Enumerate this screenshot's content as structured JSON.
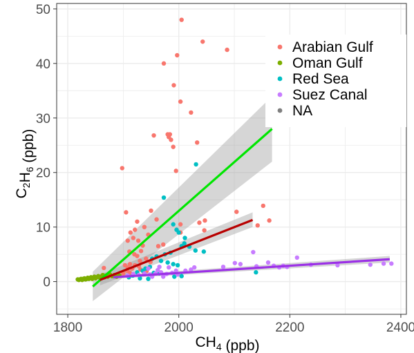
{
  "chart_data": {
    "type": "scatter",
    "xlabel": "CH4 (ppb)",
    "ylabel": "C2H6 (ppb)",
    "xlim": [
      1780,
      2410
    ],
    "ylim": [
      -6,
      51
    ],
    "x_ticks": [
      1800,
      2000,
      2200,
      2400
    ],
    "y_ticks": [
      0,
      10,
      20,
      30,
      40,
      50
    ],
    "grid": true,
    "legend_position": "top-right",
    "background": "#ffffff",
    "grid_color": "#ebebeb",
    "series": [
      {
        "name": "Arabian Gulf",
        "color": "#F8766D",
        "points": [
          [
            2005,
            48
          ],
          [
            2043,
            44
          ],
          [
            2087,
            42.5
          ],
          [
            1997,
            41.5
          ],
          [
            1973,
            40
          ],
          [
            1991,
            36
          ],
          [
            2003,
            33
          ],
          [
            2022,
            31
          ],
          [
            1980,
            27
          ],
          [
            1984,
            27
          ],
          [
            1982,
            26.5
          ],
          [
            1986,
            26
          ],
          [
            1955,
            26.8
          ],
          [
            2033,
            25.5
          ],
          [
            1990,
            24.7
          ],
          [
            1898,
            20.8
          ],
          [
            1995,
            20.3
          ],
          [
            1905,
            12.7
          ],
          [
            1950,
            13
          ],
          [
            1960,
            11.4
          ],
          [
            2104,
            12.8
          ],
          [
            2152,
            13.9
          ],
          [
            2163,
            11.2
          ],
          [
            2142,
            10.3
          ],
          [
            2047,
            11.2
          ],
          [
            2037,
            10.8
          ],
          [
            2003,
            10.5
          ],
          [
            1925,
            11
          ],
          [
            1938,
            10
          ],
          [
            1921,
            9.5
          ],
          [
            1913,
            9
          ],
          [
            1918,
            8
          ],
          [
            1927,
            7.5
          ],
          [
            1908,
            7.5
          ],
          [
            1945,
            8.6
          ],
          [
            1935,
            6.6
          ],
          [
            1963,
            6.5
          ],
          [
            1972,
            6.8
          ],
          [
            1932,
            5.6
          ],
          [
            1911,
            5.5
          ],
          [
            1920,
            5
          ],
          [
            1925,
            4.7
          ],
          [
            1941,
            4.2
          ],
          [
            1930,
            3.8
          ],
          [
            1949,
            3.6
          ],
          [
            1912,
            3.2
          ],
          [
            1921,
            3
          ],
          [
            1903,
            3
          ],
          [
            1908,
            2.6
          ],
          [
            1916,
            2.4
          ],
          [
            1931,
            2.2
          ],
          [
            1907,
            2
          ],
          [
            1900,
            1.5
          ],
          [
            1937,
            1.6
          ],
          [
            1942,
            1.9
          ],
          [
            1953,
            1.3
          ],
          [
            2046,
            9.4
          ],
          [
            2003,
            9
          ],
          [
            1890,
            1.3
          ],
          [
            1928,
            2.8
          ],
          [
            1912,
            1.6
          ],
          [
            1876,
            1.1
          ],
          [
            1865,
            2.5
          ]
        ]
      },
      {
        "name": "Oman Gulf",
        "color": "#7CAE00",
        "points": [
          [
            1818,
            0.4
          ],
          [
            1820,
            0.3
          ],
          [
            1822,
            0.4
          ],
          [
            1824,
            0.5
          ],
          [
            1826,
            0.3
          ],
          [
            1828,
            0.5
          ],
          [
            1830,
            0.6
          ],
          [
            1832,
            0.4
          ],
          [
            1834,
            0.5
          ],
          [
            1836,
            0.7
          ],
          [
            1838,
            0.5
          ],
          [
            1840,
            0.6
          ],
          [
            1842,
            0.8
          ],
          [
            1844,
            0.5
          ],
          [
            1846,
            0.7
          ],
          [
            1848,
            0.9
          ],
          [
            1850,
            0.6
          ],
          [
            1852,
            0.8
          ],
          [
            1855,
            1
          ],
          [
            1858,
            0.7
          ],
          [
            1860,
            0.9
          ],
          [
            1863,
            1.2
          ],
          [
            1866,
            0.8
          ],
          [
            1869,
            1.1
          ],
          [
            1872,
            0.9
          ],
          [
            1876,
            1.3
          ],
          [
            1880,
            1
          ],
          [
            1884,
            1.2
          ],
          [
            1888,
            0.9
          ],
          [
            1893,
            1.1
          ]
        ]
      },
      {
        "name": "Red Sea",
        "color": "#00BFC4",
        "points": [
          [
            2031,
            21.5
          ],
          [
            1973,
            15.4
          ],
          [
            1990,
            10.5
          ],
          [
            1996,
            9.5
          ],
          [
            2000,
            9
          ],
          [
            2011,
            8
          ],
          [
            2010,
            7
          ],
          [
            2005,
            6.5
          ],
          [
            2019,
            6.4
          ],
          [
            2030,
            5.7
          ],
          [
            2045,
            5.5
          ],
          [
            1985,
            5.3
          ],
          [
            1975,
            5
          ],
          [
            1960,
            4.6
          ],
          [
            1952,
            4.2
          ],
          [
            1968,
            3.8
          ],
          [
            1980,
            3.5
          ],
          [
            1990,
            3.2
          ],
          [
            1998,
            3
          ],
          [
            1948,
            2.7
          ],
          [
            1940,
            2.4
          ],
          [
            1935,
            2
          ],
          [
            1925,
            1.7
          ],
          [
            1955,
            1.6
          ],
          [
            1965,
            1.5
          ],
          [
            1917,
            1.1
          ],
          [
            1910,
            0.8
          ],
          [
            1930,
            0.6
          ],
          [
            1945,
            0.5
          ],
          [
            1992,
            0.9
          ],
          [
            2005,
            1
          ],
          [
            2139,
            1.7
          ]
        ]
      },
      {
        "name": "Suez Canal",
        "color": "#C77CFF",
        "points": [
          [
            2134,
            5.4
          ],
          [
            2101,
            3.4
          ],
          [
            2111,
            3.2
          ],
          [
            2161,
            3.5
          ],
          [
            2171,
            2.9
          ],
          [
            2188,
            2.9
          ],
          [
            2181,
            2.6
          ],
          [
            2213,
            4.4
          ],
          [
            2238,
            3.1
          ],
          [
            2286,
            3
          ],
          [
            2345,
            3.1
          ],
          [
            2369,
            3.3
          ],
          [
            2383,
            3.3
          ],
          [
            2195,
            2.7
          ],
          [
            2140,
            2.8
          ],
          [
            2080,
            2.7
          ],
          [
            2022,
            2.2
          ],
          [
            2012,
            2
          ],
          [
            1995,
            2
          ],
          [
            1988,
            1.6
          ],
          [
            1978,
            1.4
          ],
          [
            1968,
            1.7
          ],
          [
            1958,
            1.5
          ],
          [
            1948,
            1.3
          ],
          [
            1938,
            1.5
          ],
          [
            1928,
            1.2
          ],
          [
            1918,
            1.4
          ],
          [
            1908,
            1.1
          ],
          [
            1945,
            2.4
          ],
          [
            1962,
            2.1
          ],
          [
            1982,
            2.6
          ],
          [
            1998,
            1.3
          ],
          [
            1952,
            0.9
          ],
          [
            1972,
            0.9
          ],
          [
            1965,
            2.7
          ],
          [
            2028,
            2.6
          ]
        ]
      },
      {
        "name": "NA",
        "color": "#7f7f7f",
        "points": []
      }
    ],
    "fits": [
      {
        "series": "Arabian Gulf",
        "color": "#00E600",
        "x": [
          1845,
          2168
        ],
        "y": [
          -0.9,
          28
        ],
        "ci_start": [
          -3.6,
          1.8
        ],
        "ci_end": [
          22,
          34
        ]
      },
      {
        "series": "Red Sea",
        "color": "#B80000",
        "x": [
          1858,
          2133
        ],
        "y": [
          0.3,
          11.3
        ],
        "ci_start": [
          -0.7,
          1.3
        ],
        "ci_end": [
          10,
          12.7
        ]
      },
      {
        "series": "Suez Canal",
        "color": "#9B30E6",
        "x": [
          1882,
          2380
        ],
        "y": [
          0.8,
          4.1
        ],
        "ci_start": [
          0.5,
          1.1
        ],
        "ci_end": [
          3.5,
          4.7
        ]
      }
    ]
  }
}
